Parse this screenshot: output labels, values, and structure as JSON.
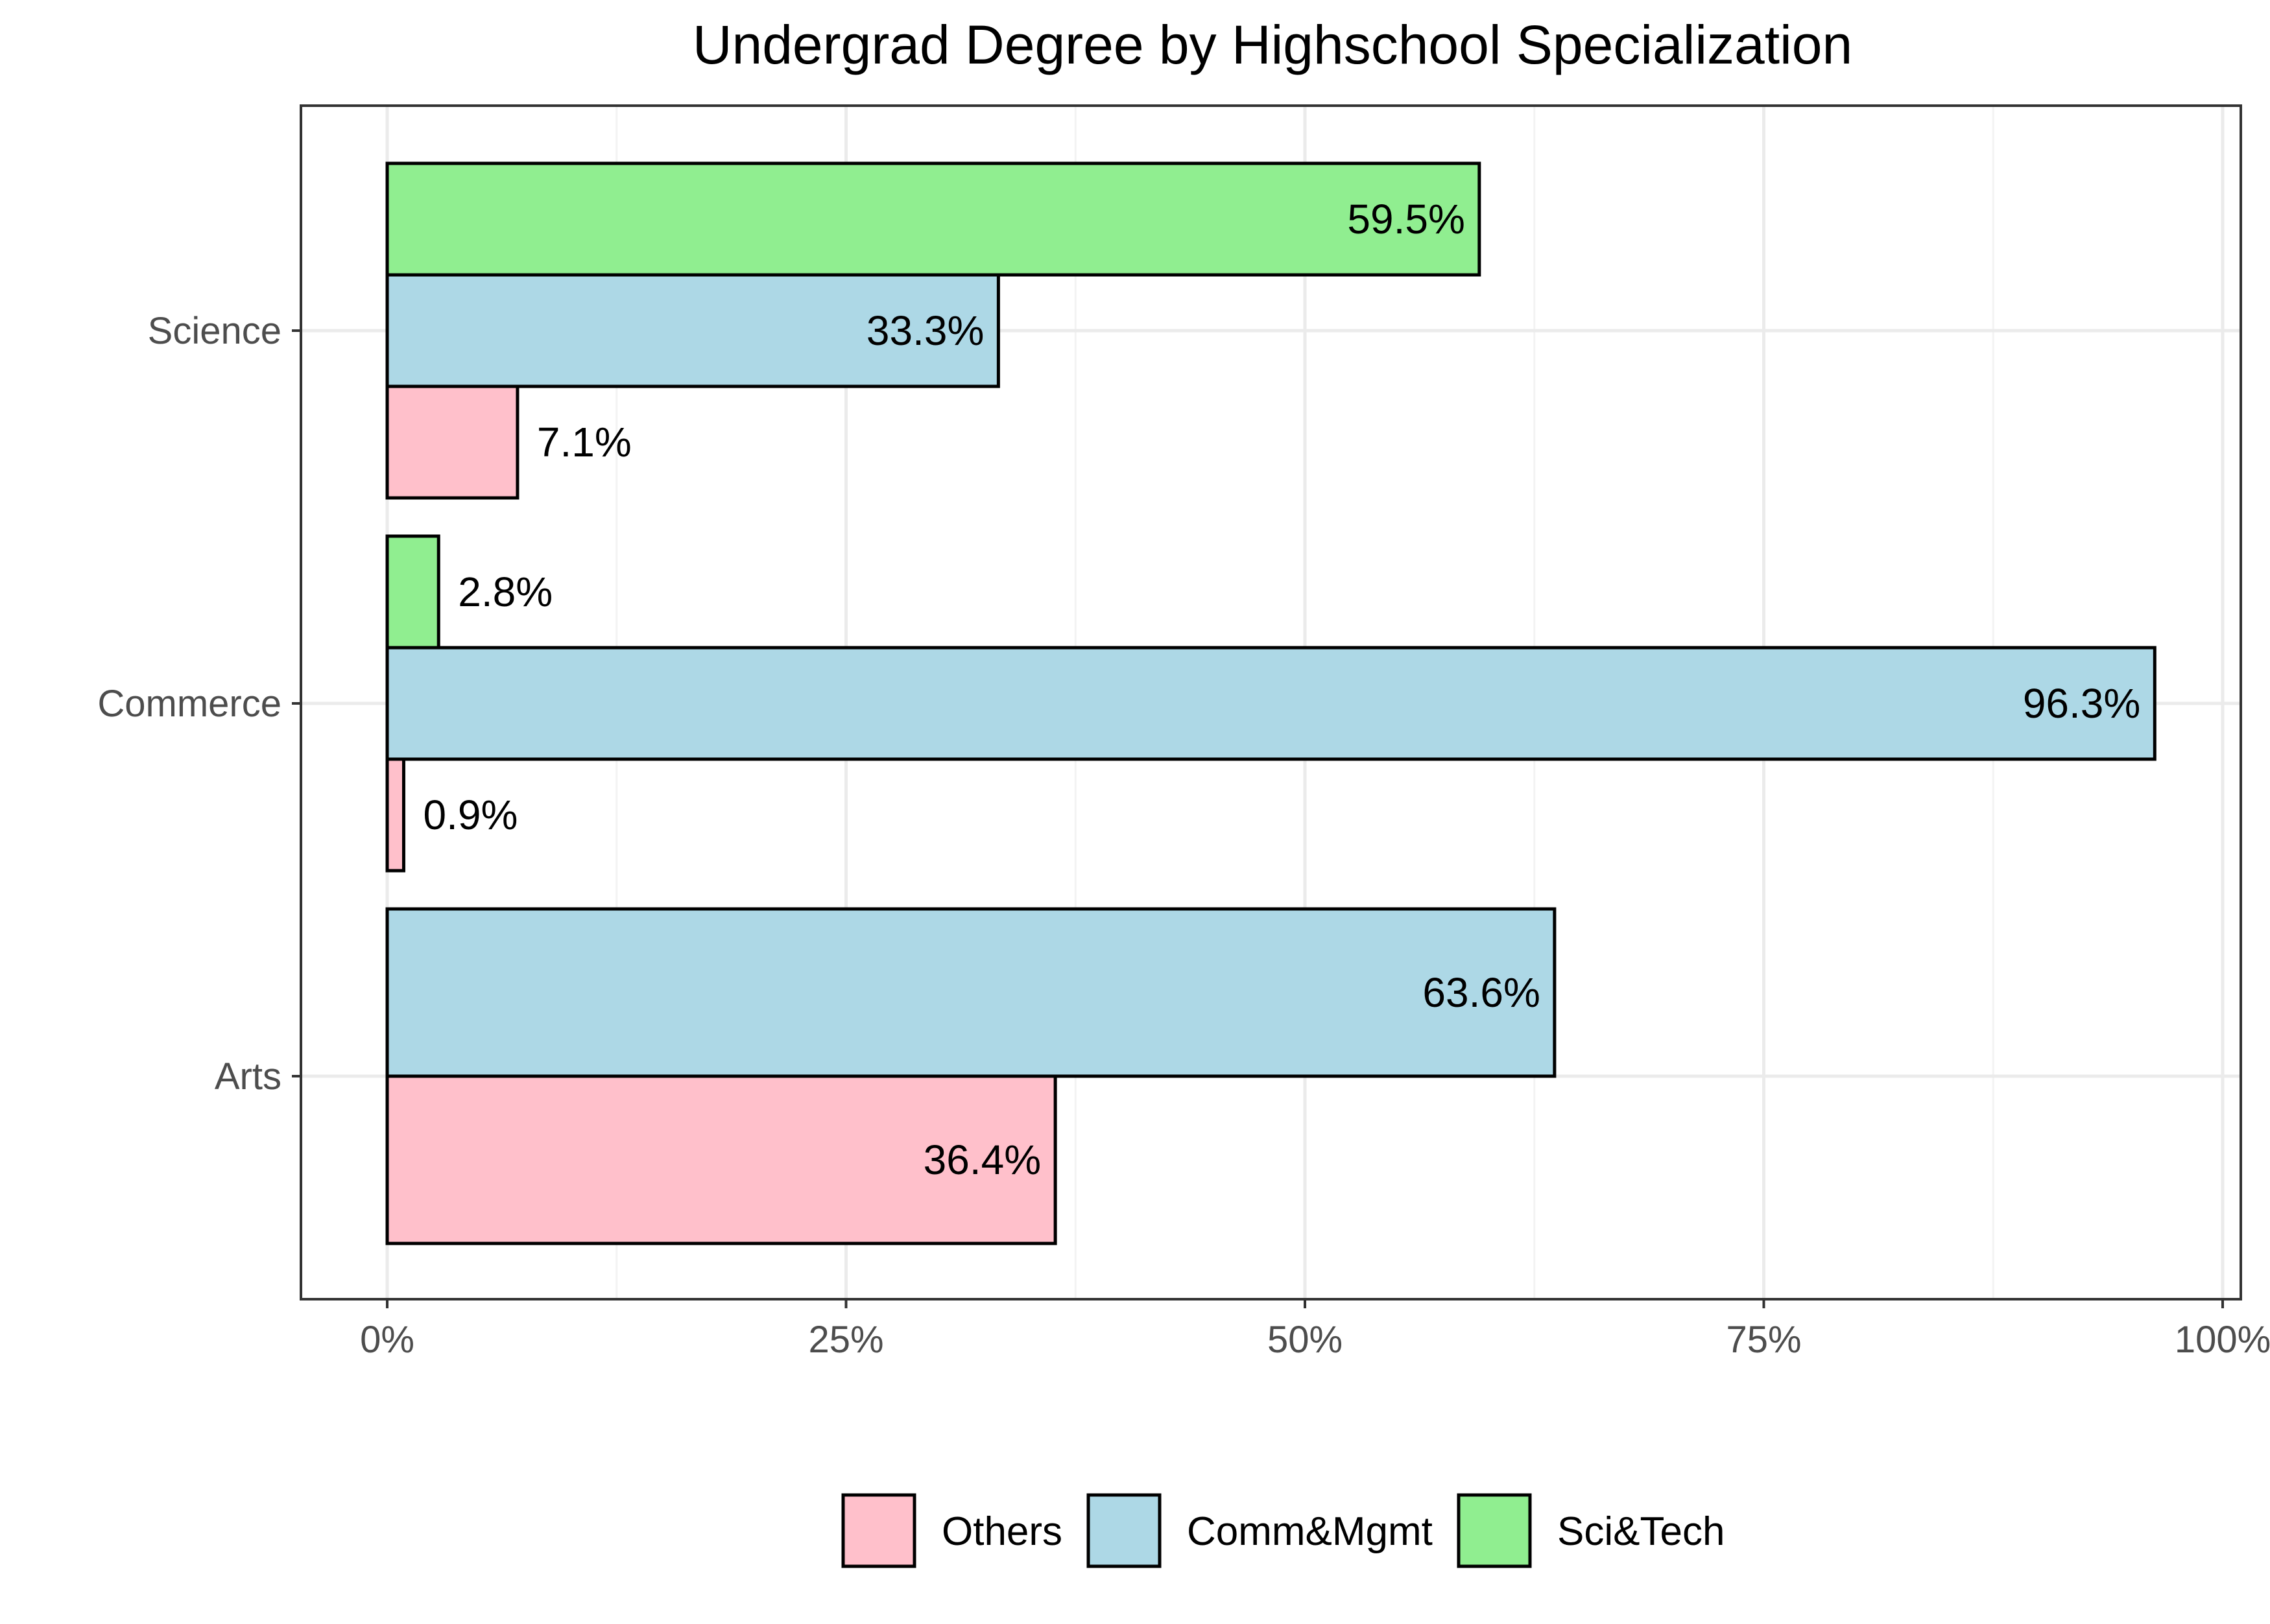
{
  "chart_data": {
    "type": "bar",
    "orientation": "horizontal",
    "title": "Undergrad Degree by Highschool Specialization",
    "xlabel": "",
    "ylabel": "",
    "categories": [
      "Arts",
      "Commerce",
      "Science"
    ],
    "x_ticks": [
      "0%",
      "25%",
      "50%",
      "75%",
      "100%"
    ],
    "xlim": [
      0,
      100
    ],
    "grid": true,
    "legend_position": "bottom",
    "series": [
      {
        "name": "Others",
        "color": "#FFC0CB",
        "values": [
          36.4,
          0.9,
          7.1
        ],
        "labels": [
          "36.4%",
          "0.9%",
          "7.1%"
        ]
      },
      {
        "name": "Comm&Mgmt",
        "color": "#ADD8E6",
        "values": [
          63.6,
          96.3,
          33.3
        ],
        "labels": [
          "63.6%",
          "96.3%",
          "33.3%"
        ]
      },
      {
        "name": "Sci&Tech",
        "color": "#90EE90",
        "values": [
          null,
          2.8,
          59.5
        ],
        "labels": [
          null,
          "2.8%",
          "59.5%"
        ]
      }
    ]
  }
}
